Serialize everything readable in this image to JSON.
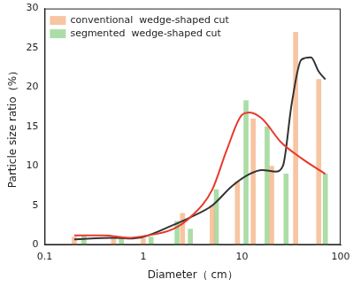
{
  "chart_data": {
    "type": "bar",
    "x_label": "Diameter（ cm）",
    "y_label": "Particle size ratio（%）",
    "log": "x",
    "xlim": [
      0.1,
      100
    ],
    "xticks": [
      0.1,
      1,
      10,
      100
    ],
    "ylim": [
      0,
      30
    ],
    "yticks": [
      0,
      5,
      10,
      15,
      20,
      25,
      30
    ],
    "grid": false,
    "legend": "upper left",
    "series": [
      {
        "name": "conventional  wedge-shaped cut",
        "type": "bar",
        "color": "#f4b183",
        "x": [
          0.2,
          0.5,
          1.0,
          2.5,
          5.0,
          9.0,
          13.0,
          20.0,
          35.0,
          60.0
        ],
        "values": [
          1.0,
          1.0,
          0.8,
          4.0,
          5.0,
          8.0,
          16.0,
          10.0,
          27.0,
          21.0
        ]
      },
      {
        "name": "segmented  wedge-shaped cut",
        "type": "bar",
        "color": "#8fd18a",
        "x": [
          0.25,
          0.6,
          1.2,
          2.2,
          3.0,
          5.5,
          11.0,
          18.0,
          28.0,
          70.0
        ],
        "values": [
          1.2,
          1.0,
          1.0,
          3.0,
          2.0,
          7.0,
          18.3,
          15.0,
          9.0,
          9.0
        ]
      },
      {
        "type": "line",
        "color": "#e8392c",
        "x": [
          0.2,
          0.4,
          0.7,
          1.0,
          2.0,
          3.0,
          5.0,
          7.0,
          10.0,
          12.0,
          16.0,
          25.0,
          40.0,
          70.0
        ],
        "values": [
          1.2,
          1.2,
          0.9,
          1.1,
          2.0,
          3.5,
          7.0,
          12.0,
          16.5,
          16.8,
          16.0,
          13.0,
          11.0,
          9.0
        ]
      },
      {
        "type": "line",
        "color": "#333333",
        "x": [
          0.2,
          0.5,
          0.7,
          1.0,
          2.0,
          3.0,
          5.0,
          8.0,
          12.0,
          16.0,
          22.0,
          26.0,
          32.0,
          40.0,
          50.0,
          60.0,
          70.0
        ],
        "values": [
          0.7,
          0.9,
          0.8,
          1.0,
          2.5,
          3.5,
          5.0,
          7.5,
          9.0,
          9.5,
          9.3,
          10.0,
          18.0,
          23.5,
          23.8,
          22.0,
          21.0
        ]
      }
    ]
  }
}
